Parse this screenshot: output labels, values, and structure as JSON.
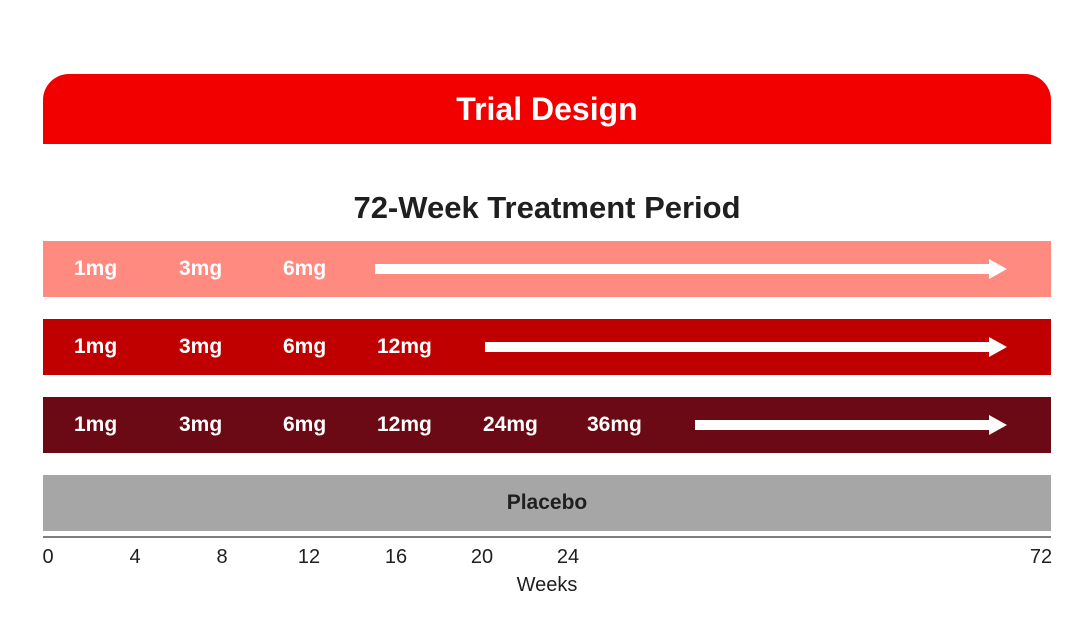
{
  "title": "Trial Design",
  "subtitle": "72-Week Treatment Period",
  "arms": [
    {
      "doses": [
        "1mg",
        "3mg",
        "6mg"
      ],
      "color": "#ff8a80"
    },
    {
      "doses": [
        "1mg",
        "3mg",
        "6mg",
        "12mg"
      ],
      "color": "#c00000"
    },
    {
      "doses": [
        "1mg",
        "3mg",
        "6mg",
        "12mg",
        "24mg",
        "36mg"
      ],
      "color": "#6b0a14"
    }
  ],
  "placebo": "Placebo",
  "axis": {
    "ticks": [
      "0",
      "4",
      "8",
      "12",
      "16",
      "20",
      "24",
      "72"
    ],
    "label": "Weeks"
  },
  "colors": {
    "banner": "#f20000",
    "placebo": "#a6a6a6"
  }
}
